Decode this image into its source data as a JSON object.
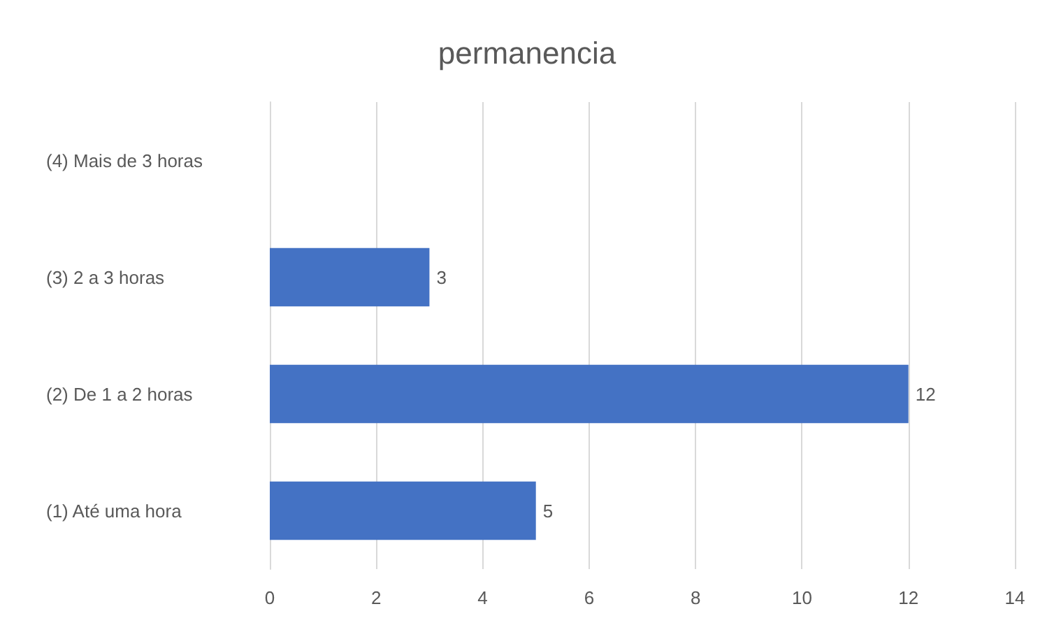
{
  "chart_data": {
    "type": "bar",
    "orientation": "horizontal",
    "title": "permanencia",
    "categories": [
      "(4) Mais de 3 horas",
      "(3) 2 a 3 horas",
      "(2) De 1 a 2 horas",
      "(1) Até uma hora"
    ],
    "values": [
      null,
      3,
      12,
      5
    ],
    "color": "#4472c4",
    "data_labels": true,
    "xlim": [
      0,
      14
    ],
    "xticks": [
      0,
      2,
      4,
      6,
      8,
      10,
      12,
      14
    ],
    "grid": "x"
  }
}
